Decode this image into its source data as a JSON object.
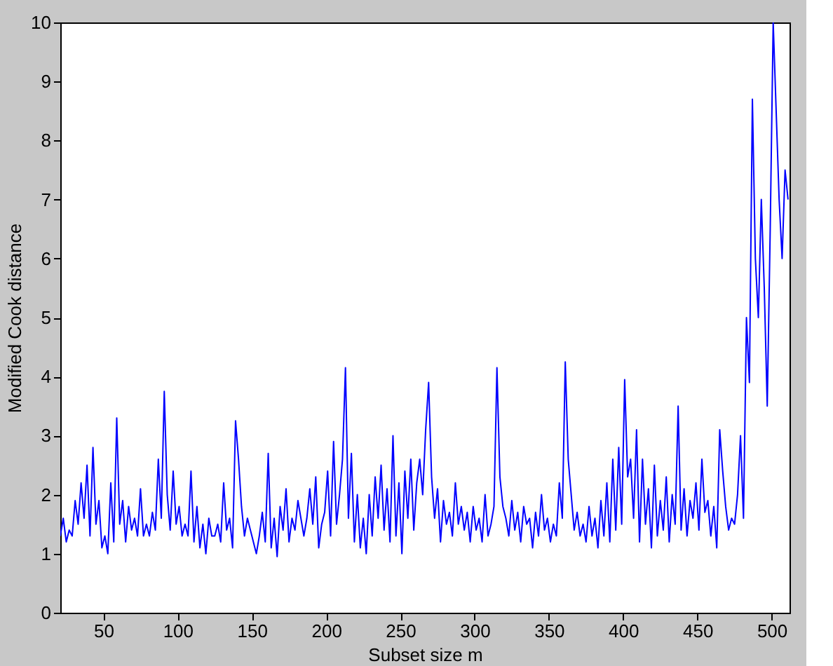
{
  "chart_data": {
    "type": "line",
    "xlabel": "Subset size m",
    "ylabel": "Modified Cook distance",
    "xlim": [
      21,
      512
    ],
    "ylim": [
      0,
      10
    ],
    "xticks": [
      50,
      100,
      150,
      200,
      250,
      300,
      350,
      400,
      450,
      500
    ],
    "yticks": [
      0,
      1,
      2,
      3,
      4,
      5,
      6,
      7,
      8,
      9,
      10
    ],
    "grid": false,
    "legend": false,
    "marker": "none",
    "line_style": "solid",
    "series": [
      {
        "color": "#0000ff",
        "x": [
          21,
          23,
          25,
          27,
          29,
          31,
          33,
          35,
          37,
          39,
          41,
          43,
          45,
          47,
          49,
          51,
          53,
          55,
          57,
          59,
          61,
          63,
          65,
          67,
          69,
          71,
          73,
          75,
          77,
          79,
          81,
          83,
          85,
          87,
          89,
          91,
          93,
          95,
          97,
          99,
          101,
          103,
          105,
          107,
          109,
          111,
          113,
          115,
          117,
          119,
          121,
          123,
          125,
          127,
          129,
          131,
          133,
          135,
          137,
          139,
          141,
          143,
          145,
          147,
          149,
          151,
          153,
          155,
          157,
          159,
          161,
          163,
          165,
          167,
          169,
          171,
          173,
          175,
          177,
          179,
          181,
          183,
          185,
          187,
          189,
          191,
          193,
          195,
          197,
          199,
          201,
          203,
          205,
          207,
          209,
          211,
          213,
          215,
          217,
          219,
          221,
          223,
          225,
          227,
          229,
          231,
          233,
          235,
          237,
          239,
          241,
          243,
          245,
          247,
          249,
          251,
          253,
          255,
          257,
          259,
          261,
          263,
          265,
          267,
          269,
          271,
          273,
          275,
          277,
          279,
          281,
          283,
          285,
          287,
          289,
          291,
          293,
          295,
          297,
          299,
          301,
          303,
          305,
          307,
          309,
          311,
          313,
          315,
          317,
          319,
          321,
          323,
          325,
          327,
          329,
          331,
          333,
          335,
          337,
          339,
          341,
          343,
          345,
          347,
          349,
          351,
          353,
          355,
          357,
          359,
          361,
          363,
          365,
          367,
          369,
          371,
          373,
          375,
          377,
          379,
          381,
          383,
          385,
          387,
          389,
          391,
          393,
          395,
          397,
          399,
          401,
          403,
          405,
          407,
          409,
          411,
          413,
          415,
          417,
          419,
          421,
          423,
          425,
          427,
          429,
          431,
          433,
          435,
          437,
          439,
          441,
          443,
          445,
          447,
          449,
          451,
          453,
          455,
          457,
          459,
          461,
          463,
          465,
          467,
          469,
          471,
          473,
          475,
          477,
          479,
          481,
          483,
          485,
          487,
          489,
          491,
          493,
          495,
          497,
          499,
          501,
          503,
          505,
          507,
          509,
          511
        ],
        "values": [
          1.3,
          1.6,
          1.2,
          1.4,
          1.3,
          1.9,
          1.5,
          2.2,
          1.6,
          2.5,
          1.3,
          2.8,
          1.5,
          1.9,
          1.1,
          1.3,
          1.0,
          2.2,
          1.2,
          3.3,
          1.5,
          1.9,
          1.2,
          1.8,
          1.4,
          1.6,
          1.3,
          2.1,
          1.3,
          1.5,
          1.3,
          1.7,
          1.4,
          2.6,
          1.6,
          3.75,
          2.0,
          1.4,
          2.4,
          1.5,
          1.8,
          1.3,
          1.5,
          1.3,
          2.4,
          1.2,
          1.8,
          1.1,
          1.5,
          1.0,
          1.6,
          1.3,
          1.3,
          1.5,
          1.2,
          2.2,
          1.4,
          1.6,
          1.1,
          3.25,
          2.6,
          1.8,
          1.3,
          1.6,
          1.4,
          1.2,
          1.0,
          1.3,
          1.7,
          1.2,
          2.7,
          1.1,
          1.6,
          0.95,
          1.8,
          1.4,
          2.1,
          1.2,
          1.6,
          1.4,
          1.9,
          1.6,
          1.3,
          1.6,
          2.1,
          1.5,
          2.3,
          1.1,
          1.5,
          1.7,
          2.4,
          1.3,
          2.9,
          1.5,
          2.0,
          2.6,
          4.15,
          1.6,
          2.7,
          1.2,
          2.0,
          1.1,
          1.6,
          1.0,
          2.0,
          1.3,
          2.3,
          1.6,
          2.5,
          1.4,
          2.1,
          1.2,
          3.0,
          1.3,
          2.2,
          1.0,
          2.4,
          1.6,
          2.6,
          1.4,
          2.2,
          2.6,
          2.0,
          3.1,
          3.9,
          2.3,
          1.6,
          2.1,
          1.2,
          1.9,
          1.5,
          1.7,
          1.3,
          2.2,
          1.5,
          1.8,
          1.4,
          1.7,
          1.2,
          1.8,
          1.4,
          1.6,
          1.2,
          2.0,
          1.3,
          1.5,
          1.8,
          4.15,
          2.3,
          1.8,
          1.6,
          1.3,
          1.9,
          1.4,
          1.7,
          1.2,
          1.8,
          1.5,
          1.6,
          1.1,
          1.7,
          1.3,
          2.0,
          1.4,
          1.6,
          1.2,
          1.5,
          1.3,
          2.2,
          1.6,
          4.25,
          2.6,
          2.0,
          1.4,
          1.7,
          1.3,
          1.5,
          1.2,
          1.8,
          1.3,
          1.6,
          1.1,
          1.9,
          1.3,
          2.2,
          1.2,
          2.6,
          1.4,
          2.8,
          1.5,
          3.95,
          2.3,
          2.6,
          1.6,
          3.1,
          1.2,
          2.6,
          1.5,
          2.1,
          1.1,
          2.5,
          1.3,
          1.9,
          1.4,
          2.3,
          1.2,
          2.0,
          1.5,
          3.5,
          1.4,
          2.1,
          1.3,
          1.9,
          1.6,
          2.2,
          1.4,
          2.6,
          1.7,
          1.9,
          1.3,
          1.8,
          1.1,
          3.1,
          2.4,
          1.8,
          1.4,
          1.6,
          1.5,
          2.0,
          3.0,
          1.6,
          5.0,
          3.9,
          8.7,
          6.0,
          5.0,
          7.0,
          5.5,
          3.5,
          6.5,
          10.0,
          8.5,
          7.0,
          6.0,
          7.5,
          7.0
        ]
      }
    ]
  }
}
